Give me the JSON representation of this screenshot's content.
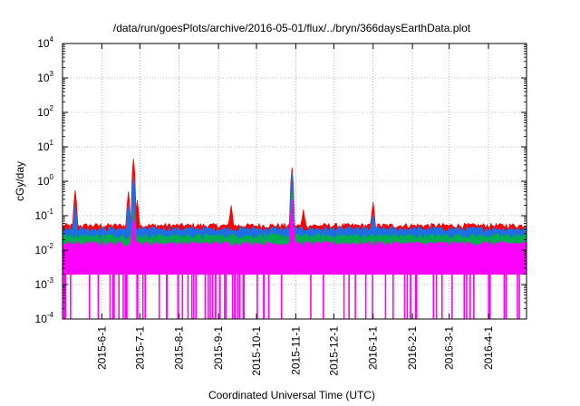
{
  "chart_data": {
    "type": "line",
    "title": "/data/run/goesPlots/archive/2016-05-01/flux/../bryn/366daysEarthData.plot",
    "xlabel": "Coordinated Universal Time (UTC)",
    "ylabel": "cGy/day",
    "yscale": "log",
    "ylim": [
      0.0001,
      10000
    ],
    "xlim": [
      "2015-05-01",
      "2016-05-01"
    ],
    "grid": true,
    "y_ticks": [
      {
        "base": "10",
        "exp": "-4"
      },
      {
        "base": "10",
        "exp": "-3"
      },
      {
        "base": "10",
        "exp": "-2"
      },
      {
        "base": "10",
        "exp": "-1"
      },
      {
        "base": "10",
        "exp": "0"
      },
      {
        "base": "10",
        "exp": "1"
      },
      {
        "base": "10",
        "exp": "2"
      },
      {
        "base": "10",
        "exp": "3"
      },
      {
        "base": "10",
        "exp": "4"
      }
    ],
    "x_ticks": [
      {
        "label": "2015-6-1",
        "date": "2015-06-01"
      },
      {
        "label": "2015-7-1",
        "date": "2015-07-01"
      },
      {
        "label": "2015-8-1",
        "date": "2015-08-01"
      },
      {
        "label": "2015-9-1",
        "date": "2015-09-01"
      },
      {
        "label": "2015-10-1",
        "date": "2015-10-01"
      },
      {
        "label": "2015-11-1",
        "date": "2015-11-01"
      },
      {
        "label": "2015-12-1",
        "date": "2015-12-01"
      },
      {
        "label": "2016-1-1",
        "date": "2016-01-01"
      },
      {
        "label": "2016-2-1",
        "date": "2016-02-01"
      },
      {
        "label": "2016-3-1",
        "date": "2016-03-01"
      },
      {
        "label": "2016-4-1",
        "date": "2016-04-01"
      }
    ],
    "series": [
      {
        "color": "#ff0000",
        "baseline": 0.05,
        "peaks": [
          {
            "date": "2015-05-11",
            "value": 0.55
          },
          {
            "date": "2015-06-22",
            "value": 0.5
          },
          {
            "date": "2015-06-26",
            "value": 4.5
          },
          {
            "date": "2015-06-29",
            "value": 0.28
          },
          {
            "date": "2015-09-11",
            "value": 0.2
          },
          {
            "date": "2015-10-29",
            "value": 2.5
          },
          {
            "date": "2015-11-07",
            "value": 0.15
          },
          {
            "date": "2016-01-01",
            "value": 0.25
          }
        ]
      },
      {
        "color": "#1e6ee6",
        "baseline": 0.04,
        "peaks": [
          {
            "date": "2015-05-11",
            "value": 0.2
          },
          {
            "date": "2015-06-22",
            "value": 0.25
          },
          {
            "date": "2015-06-26",
            "value": 1.5
          },
          {
            "date": "2015-10-29",
            "value": 1.8
          },
          {
            "date": "2016-01-01",
            "value": 0.12
          }
        ]
      },
      {
        "color": "#00b050",
        "baseline": 0.025,
        "peaks": [
          {
            "date": "2015-06-26",
            "value": 0.15
          },
          {
            "date": "2015-10-29",
            "value": 0.5
          }
        ]
      },
      {
        "color": "#ff00ff",
        "baseline": 0.015,
        "floor": 0.002,
        "peaks": [
          {
            "date": "2015-06-26",
            "value": 0.1
          },
          {
            "date": "2015-10-29",
            "value": 0.3
          }
        ]
      }
    ]
  }
}
